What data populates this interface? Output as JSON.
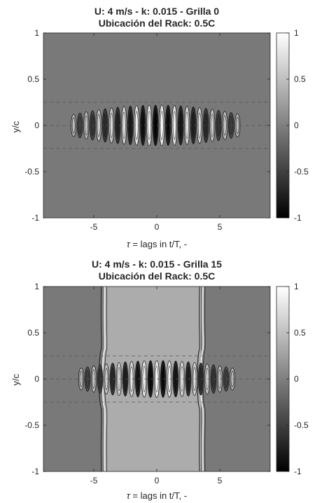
{
  "chart_data": [
    {
      "type": "heatmap",
      "title": "U: 4 m/s - k: 0.015 - Grilla 0",
      "subtitle": "Ubicación del Rack: 0.5C",
      "xlabel_symbol": "τ",
      "xlabel": " = lags in t/T, -",
      "ylabel": "y/c",
      "xlim": [
        -9,
        9
      ],
      "ylim": [
        -1,
        1
      ],
      "xticks": [
        -5,
        0,
        5
      ],
      "xtick_labels": [
        "-5",
        "0",
        "5"
      ],
      "yticks": [
        -1,
        -0.5,
        0,
        0.5,
        1
      ],
      "ytick_labels": [
        "-1",
        "-0.5",
        "0",
        "0.5",
        "1"
      ],
      "clim": [
        -1,
        1
      ],
      "colorbar_ticks": [
        -1,
        -0.5,
        0,
        0.5,
        1
      ],
      "colorbar_tick_labels": [
        "-1",
        "-0.5",
        "0",
        "0.5",
        "1"
      ],
      "colormap": "gray",
      "reference_lines_y": [
        -0.25,
        0,
        0.25
      ],
      "background_value": -0.05,
      "band": {
        "x_range": [
          -6.6,
          6.6
        ],
        "y_half_height_center": 0.22,
        "y_half_height_edge": 0.12,
        "oscillation_period": 0.5
      }
    },
    {
      "type": "heatmap",
      "title": "U: 4 m/s - k: 0.015 - Grilla 15",
      "subtitle": "Ubicación del Rack: 0.5C",
      "xlabel_symbol": "τ",
      "xlabel": " = lags in t/T, -",
      "ylabel": "y/c",
      "xlim": [
        -9,
        9
      ],
      "ylim": [
        -1,
        1
      ],
      "xticks": [
        -5,
        0,
        5
      ],
      "xtick_labels": [
        "-5",
        "0",
        "5"
      ],
      "yticks": [
        -1,
        -0.5,
        0,
        0.5,
        1
      ],
      "ytick_labels": [
        "-1",
        "-0.5",
        "0",
        "0.5",
        "1"
      ],
      "clim": [
        -1,
        1
      ],
      "colorbar_ticks": [
        -1,
        -0.5,
        0,
        0.5,
        1
      ],
      "colorbar_tick_labels": [
        "-1",
        "-0.5",
        "0",
        "0.5",
        "1"
      ],
      "colormap": "gray",
      "reference_lines_y": [
        -0.25,
        0,
        0.25
      ],
      "background_value": -0.05,
      "central_region": {
        "x_range": [
          -4.2,
          3.5
        ],
        "value": 0.35
      },
      "vertical_structures_x": [
        -4.3,
        3.5
      ],
      "band": {
        "x_range": [
          -6,
          6
        ],
        "y_half_height_center": 0.2,
        "y_half_height_edge": 0.12,
        "oscillation_period": 0.5
      }
    }
  ]
}
